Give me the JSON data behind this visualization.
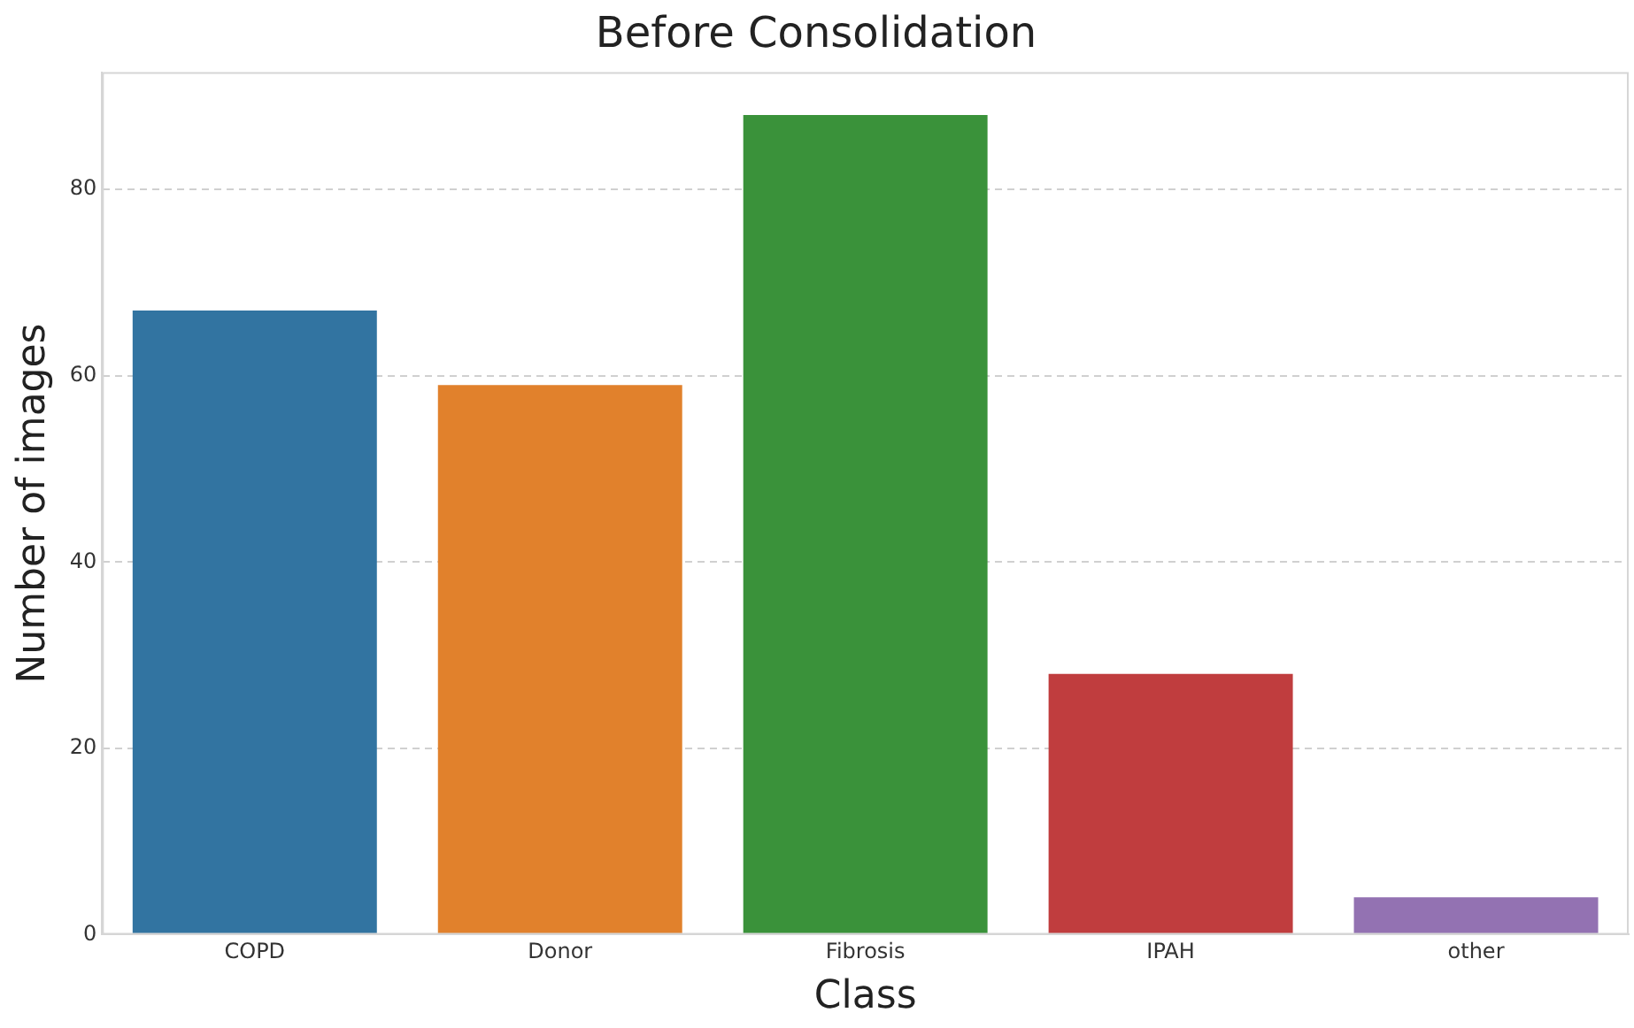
{
  "chart_data": {
    "type": "bar",
    "title": "Before Consolidation",
    "xlabel": "Class",
    "ylabel": "Number of images",
    "categories": [
      "COPD",
      "Donor",
      "Fibrosis",
      "IPAH",
      "other"
    ],
    "values": [
      67,
      59,
      88,
      28,
      4
    ],
    "colors": [
      "#3274a1",
      "#e1812c",
      "#3a923a",
      "#c03d3e",
      "#9372b2"
    ],
    "ylim": [
      0,
      92.6
    ],
    "yticks": [
      0,
      20,
      40,
      60,
      80
    ],
    "grid": "y",
    "legend": false
  }
}
